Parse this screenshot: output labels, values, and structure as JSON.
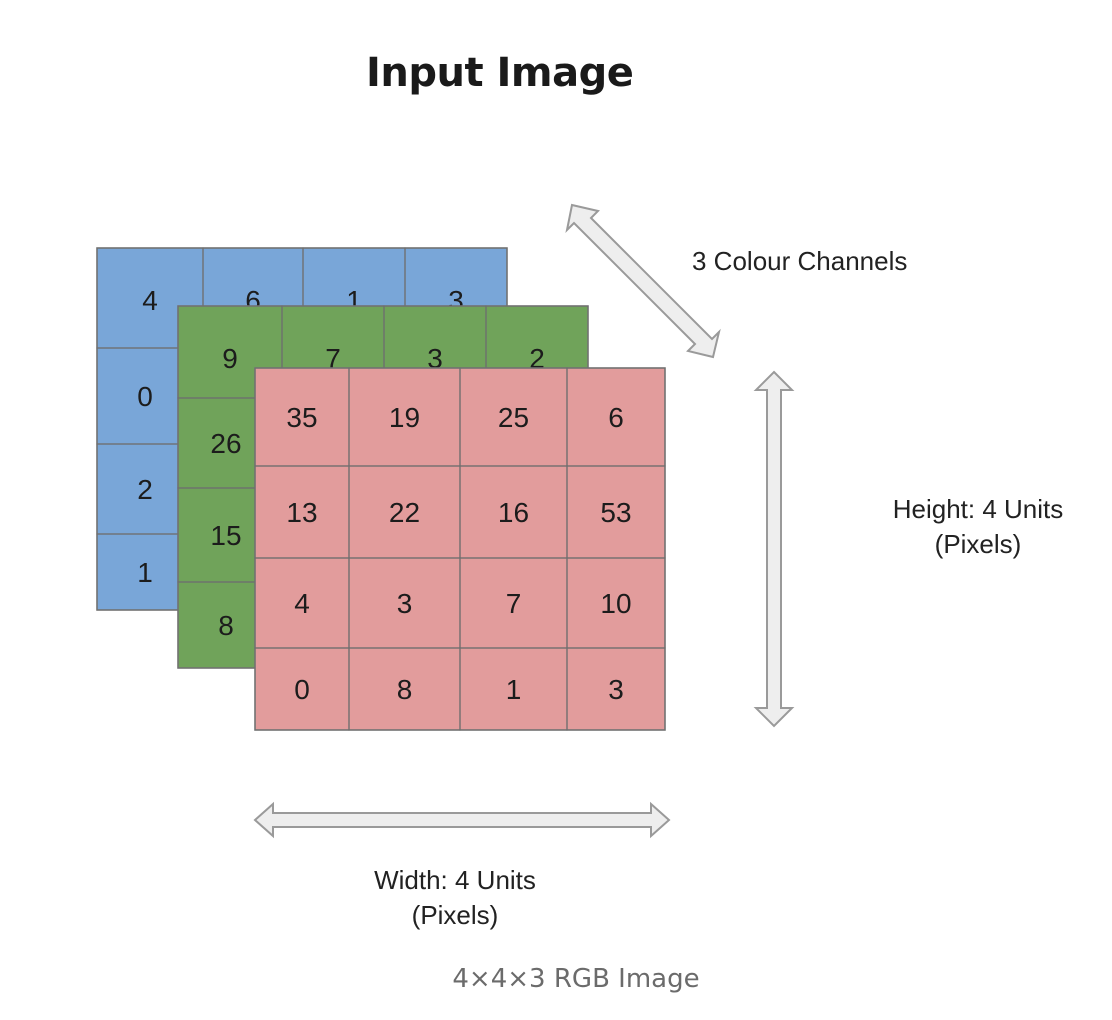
{
  "title": "Input Image",
  "labels": {
    "channels": "3 Colour Channels",
    "height_line1": "Height: 4 Units",
    "height_line2": "(Pixels)",
    "width_line1": "Width: 4 Units",
    "width_line2": "(Pixels)"
  },
  "caption": "4×4×3 RGB Image",
  "channels": [
    {
      "name": "",
      "color": "#79a6d8",
      "values": [
        [
          4,
          6,
          1,
          3
        ],
        [
          0,
          "",
          "",
          ""
        ],
        [
          2,
          "",
          "",
          ""
        ],
        [
          1,
          "",
          "",
          ""
        ]
      ]
    },
    {
      "name": "",
      "color": "#70a35a",
      "values": [
        [
          9,
          7,
          3,
          2
        ],
        [
          26,
          "",
          "",
          ""
        ],
        [
          15,
          "",
          "",
          ""
        ],
        [
          8,
          "",
          "",
          ""
        ]
      ]
    },
    {
      "name": "",
      "color": "#e29c9c",
      "values": [
        [
          35,
          19,
          25,
          6
        ],
        [
          13,
          22,
          16,
          53
        ],
        [
          4,
          3,
          7,
          10
        ],
        [
          0,
          8,
          1,
          3
        ]
      ]
    }
  ]
}
